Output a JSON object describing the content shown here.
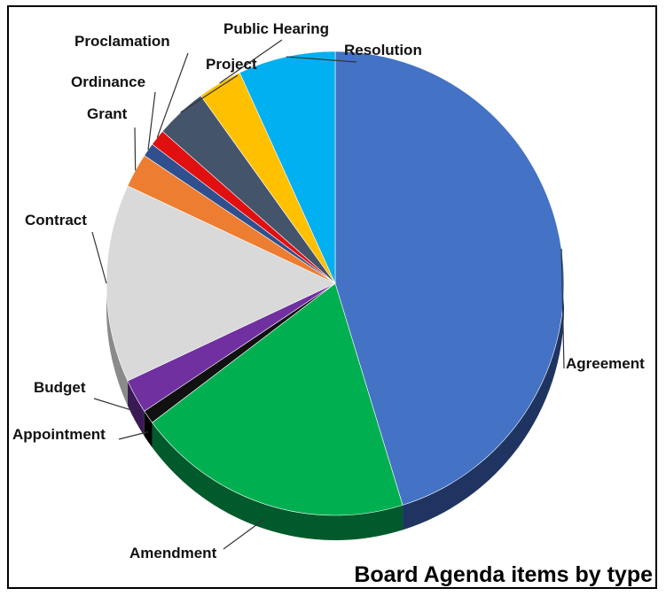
{
  "chart_data": {
    "type": "pie",
    "title": "Board Agenda items by type",
    "slices": [
      {
        "label": "Agreement",
        "value": 47.5,
        "color": "#4472C4",
        "side": "#1F3461"
      },
      {
        "label": "Amendment",
        "value": 20.5,
        "color": "#00B050",
        "side": "#005A2B"
      },
      {
        "label": "Appointment",
        "value": 1.0,
        "color": "#111111",
        "side": "#000000"
      },
      {
        "label": "Budget",
        "value": 2.5,
        "color": "#7030A0",
        "side": "#3A1A55"
      },
      {
        "label": "Contract",
        "value": 14.5,
        "color": "#D9D9D9",
        "side": "#8A8A8A"
      },
      {
        "label": "Grant",
        "value": 2.5,
        "color": "#ED7D31",
        "side": "#8A4416"
      },
      {
        "label": "Ordinance",
        "value": 1.0,
        "color": "#2F4F8F",
        "side": "#1A2A4C"
      },
      {
        "label": "Proclamation",
        "value": 1.2,
        "color": "#E01010",
        "side": "#7A0808"
      },
      {
        "label": "Project",
        "value": 3.8,
        "color": "#44546A",
        "side": "#232C38"
      },
      {
        "label": "Public Hearing",
        "value": 3.3,
        "color": "#FFC000",
        "side": "#8A6800"
      },
      {
        "label": "Resolution",
        "value": 7.2,
        "color": "#00B0F0",
        "side": "#006488"
      }
    ]
  }
}
